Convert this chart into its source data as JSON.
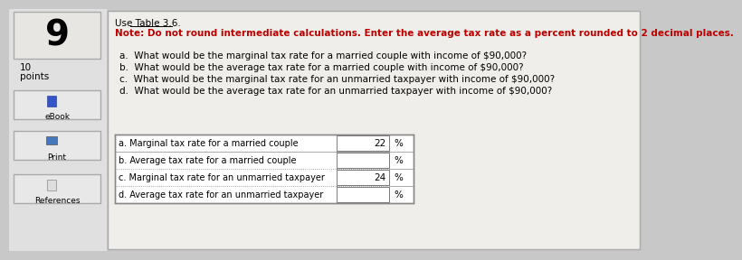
{
  "question_number": "9",
  "points_line1": "10",
  "points_line2": "points",
  "use_table": "Use Table 3.6.",
  "note": "Note: Do not round intermediate calculations. Enter the average tax rate as a percent rounded to 2 decimal places.",
  "questions": [
    "a.  What would be the marginal tax rate for a married couple with income of $90,000?",
    "b.  What would be the average tax rate for a married couple with income of $90,000?",
    "c.  What would be the marginal tax rate for an unmarried taxpayer with income of $90,000?",
    "d.  What would be the average tax rate for an unmarried taxpayer with income of $90,000?"
  ],
  "table_rows": [
    {
      "label": "a. Marginal tax rate for a married couple",
      "value": "22",
      "unit": "%"
    },
    {
      "label": "b. Average tax rate for a married couple",
      "value": "",
      "unit": "%"
    },
    {
      "label": "c. Marginal tax rate for an unmarried taxpayer",
      "value": "24",
      "unit": "%"
    },
    {
      "label": "d. Average tax rate for an unmarried taxpayer",
      "value": "",
      "unit": "%"
    }
  ],
  "sidebar_labels": [
    "eBook",
    "Print",
    "References"
  ],
  "outer_bg": "#c8c8c8",
  "left_panel_bg": "#e0e0e0",
  "main_panel_bg": "#f0eeea",
  "table_bg": "#ffffff",
  "border_color": "#aaaaaa",
  "table_border": "#888888",
  "note_color": "#bb0000",
  "text_color": "#111111",
  "sidebar_btn_bg": "#e8e8e8",
  "sidebar_btn_border": "#aaaaaa",
  "num9_box_bg": "#e8e6e2",
  "num9_box_border": "#aaaaaa"
}
